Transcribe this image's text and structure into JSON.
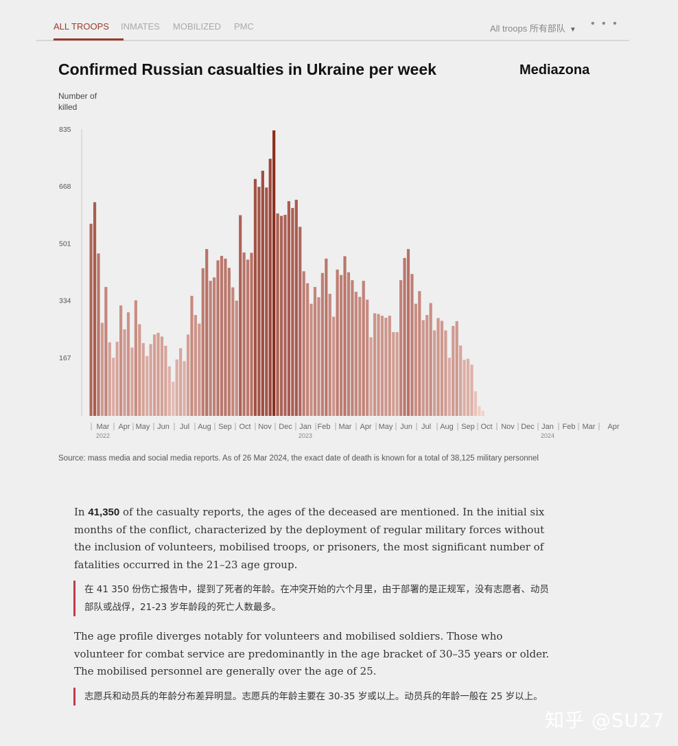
{
  "tabs": [
    "ALL TROOPS",
    "INMATES",
    "MOBILIZED",
    "PMC"
  ],
  "selector": {
    "label": "All troops 所有部队",
    "more_label": "• • •"
  },
  "chart_title": "Confirmed Russian casualties in Ukraine per week",
  "brand": "Mediazona",
  "source": "Source: mass media and social media reports. As of 26 Mar 2024, the exact date of death is known for a total of 38,125 military personnel",
  "article": {
    "p1_prefix": "In ",
    "p1_number": "41,350",
    "p1_text": " of the casualty reports, the ages of the deceased are mentioned. In the initial six months of the conflict, characterized by the deployment of regular military forces without the inclusion of volunteers, mobilised troops, or prisoners, the most significant number of fatalities occurred in the 21–23 age group.",
    "q1": "在 41 350 份伤亡报告中，提到了死者的年龄。在冲突开始的六个月里，由于部署的是正规军，没有志愿者、动员部队或战俘，21-23 岁年龄段的死亡人数最多。",
    "p2": "The age profile diverges notably for volunteers and mobilised soldiers. Those who volunteer for combat service are predominantly in the age bracket of 30–35 years or older. The mobilised personnel are generally over the age of 25.",
    "q2": "志愿兵和动员兵的年龄分布差异明显。志愿兵的年龄主要在 30-35 岁或以上。动员兵的年龄一般在 25 岁以上。"
  },
  "watermark": "知乎 @SU27",
  "chart_data": {
    "type": "bar",
    "title": "Confirmed Russian casualties in Ukraine per week",
    "ylabel": "Number of killed",
    "ylim": [
      0,
      835
    ],
    "yticks": [
      167,
      334,
      501,
      668,
      835
    ],
    "x_month_labels": [
      "Mar",
      "Apr",
      "May",
      "Jun",
      "Jul",
      "Aug",
      "Sep",
      "Oct",
      "Nov",
      "Dec",
      "Jan",
      "Feb",
      "Mar",
      "Apr",
      "May",
      "Jun",
      "Jul",
      "Aug",
      "Sep",
      "Oct",
      "Nov",
      "Dec",
      "Jan",
      "Feb",
      "Mar",
      "Apr"
    ],
    "x_year_labels": [
      "2022",
      "2023",
      "2024"
    ],
    "peak_color": "#8e2e1c",
    "values": [
      562,
      625,
      475,
      272,
      377,
      215,
      170,
      217,
      323,
      253,
      303,
      200,
      338,
      268,
      213,
      175,
      210,
      238,
      243,
      232,
      205,
      145,
      100,
      165,
      198,
      160,
      238,
      351,
      295,
      270,
      432,
      488,
      395,
      405,
      455,
      468,
      460,
      433,
      376,
      337,
      587,
      478,
      457,
      477,
      693,
      670,
      717,
      668,
      752,
      835,
      592,
      585,
      588,
      628,
      608,
      632,
      553,
      423,
      388,
      328,
      377,
      347,
      418,
      460,
      357,
      290,
      428,
      412,
      467,
      420,
      397,
      363,
      348,
      395,
      340,
      230,
      300,
      298,
      293,
      287,
      293,
      245,
      245,
      397,
      462,
      488,
      415,
      328,
      365,
      280,
      295,
      330,
      250,
      286,
      278,
      250,
      170,
      263,
      277,
      206,
      164,
      167,
      150,
      72,
      28,
      15
    ]
  }
}
